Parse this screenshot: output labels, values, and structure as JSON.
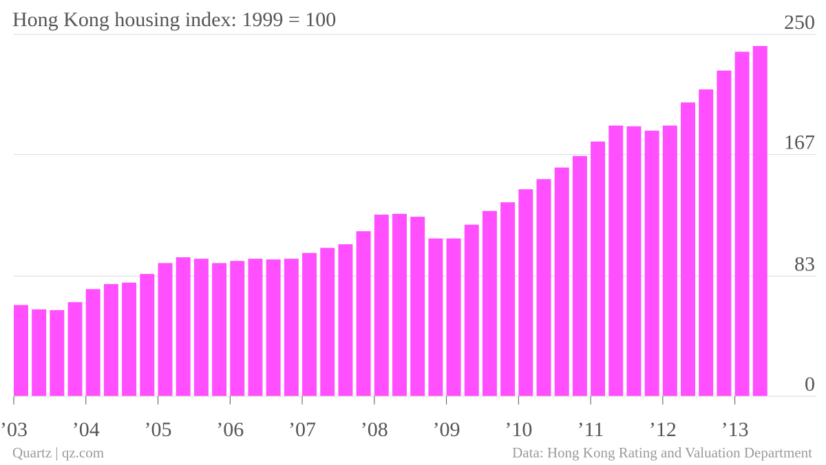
{
  "chart_data": {
    "type": "bar",
    "title": "Hong Kong housing index: 1999 = 100",
    "xlabel": "",
    "ylabel": "",
    "ylim": [
      0,
      250
    ],
    "y_ticks": [
      0,
      83,
      167,
      250
    ],
    "y_axis_side": "right",
    "x_tick_labels": [
      "’03",
      "’04",
      "’05",
      "’06",
      "’07",
      "’08",
      "’09",
      "’10",
      "’11",
      "’12",
      "’13"
    ],
    "x_tick_indices": [
      0,
      4,
      8,
      12,
      16,
      20,
      24,
      28,
      32,
      36,
      40
    ],
    "categories": [
      "2003 Q1",
      "2003 Q2",
      "2003 Q3",
      "2003 Q4",
      "2004 Q1",
      "2004 Q2",
      "2004 Q3",
      "2004 Q4",
      "2005 Q1",
      "2005 Q2",
      "2005 Q3",
      "2005 Q4",
      "2006 Q1",
      "2006 Q2",
      "2006 Q3",
      "2006 Q4",
      "2007 Q1",
      "2007 Q2",
      "2007 Q3",
      "2007 Q4",
      "2008 Q1",
      "2008 Q2",
      "2008 Q3",
      "2008 Q4",
      "2009 Q1",
      "2009 Q2",
      "2009 Q3",
      "2009 Q4",
      "2010 Q1",
      "2010 Q2",
      "2010 Q3",
      "2010 Q4",
      "2011 Q1",
      "2011 Q2",
      "2011 Q3",
      "2011 Q4",
      "2012 Q1",
      "2012 Q2",
      "2012 Q3",
      "2012 Q4",
      "2013 Q1",
      "2013 Q2"
    ],
    "values": [
      63,
      60,
      59.5,
      65,
      74,
      77.5,
      78.5,
      84.5,
      92,
      96,
      95,
      92,
      93.5,
      95,
      94.5,
      95,
      99,
      102.5,
      105,
      114,
      125.5,
      126,
      124,
      109,
      109,
      118.5,
      128,
      134,
      143,
      150,
      158,
      166,
      176,
      187,
      186.5,
      183.5,
      187,
      203,
      212,
      225,
      238,
      242
    ],
    "grid": true,
    "bar_color": "#ff4fff"
  },
  "footer": {
    "source_left": "Quartz | qz.com",
    "source_right": "Data: Hong Kong Rating and Valuation Department"
  },
  "colors": {
    "bar": "#ff4fff",
    "grid": "#d9d9d9",
    "axis_text": "#555555",
    "footer_text": "#9a9a9a"
  }
}
